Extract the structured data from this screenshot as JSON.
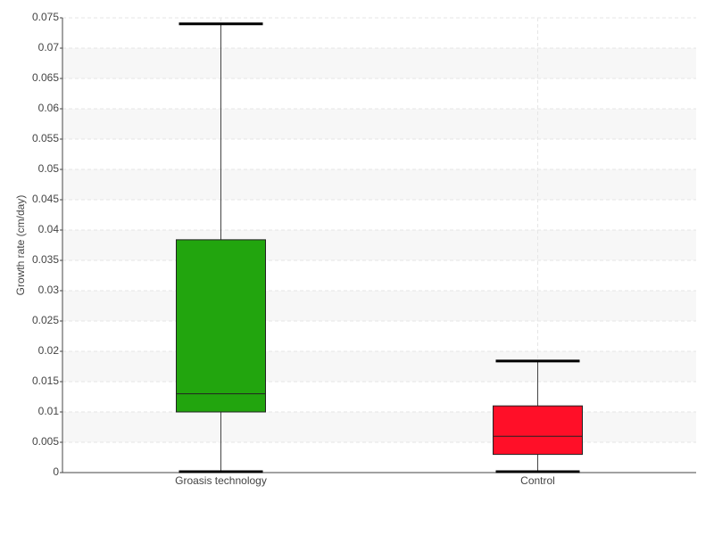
{
  "chart_data": {
    "type": "box",
    "y_label": "Growth rate (cm/day)",
    "categories": [
      "Groasis technology",
      "Control"
    ],
    "colors": [
      "#22a50e",
      "#ff0f28"
    ],
    "boxes": [
      {
        "min": 0,
        "q1": 0.01,
        "median": 0.013,
        "q3": 0.0384,
        "max": 0.074
      },
      {
        "min": 0,
        "q1": 0.003,
        "median": 0.006,
        "q3": 0.011,
        "max": 0.0184
      }
    ],
    "ylim": [
      0,
      0.075
    ],
    "yticks": [
      0,
      0.005,
      0.01,
      0.015,
      0.02,
      0.025,
      0.03,
      0.035,
      0.04,
      0.045,
      0.05,
      0.055,
      0.06,
      0.065,
      0.07,
      0.075
    ],
    "grid": true
  }
}
